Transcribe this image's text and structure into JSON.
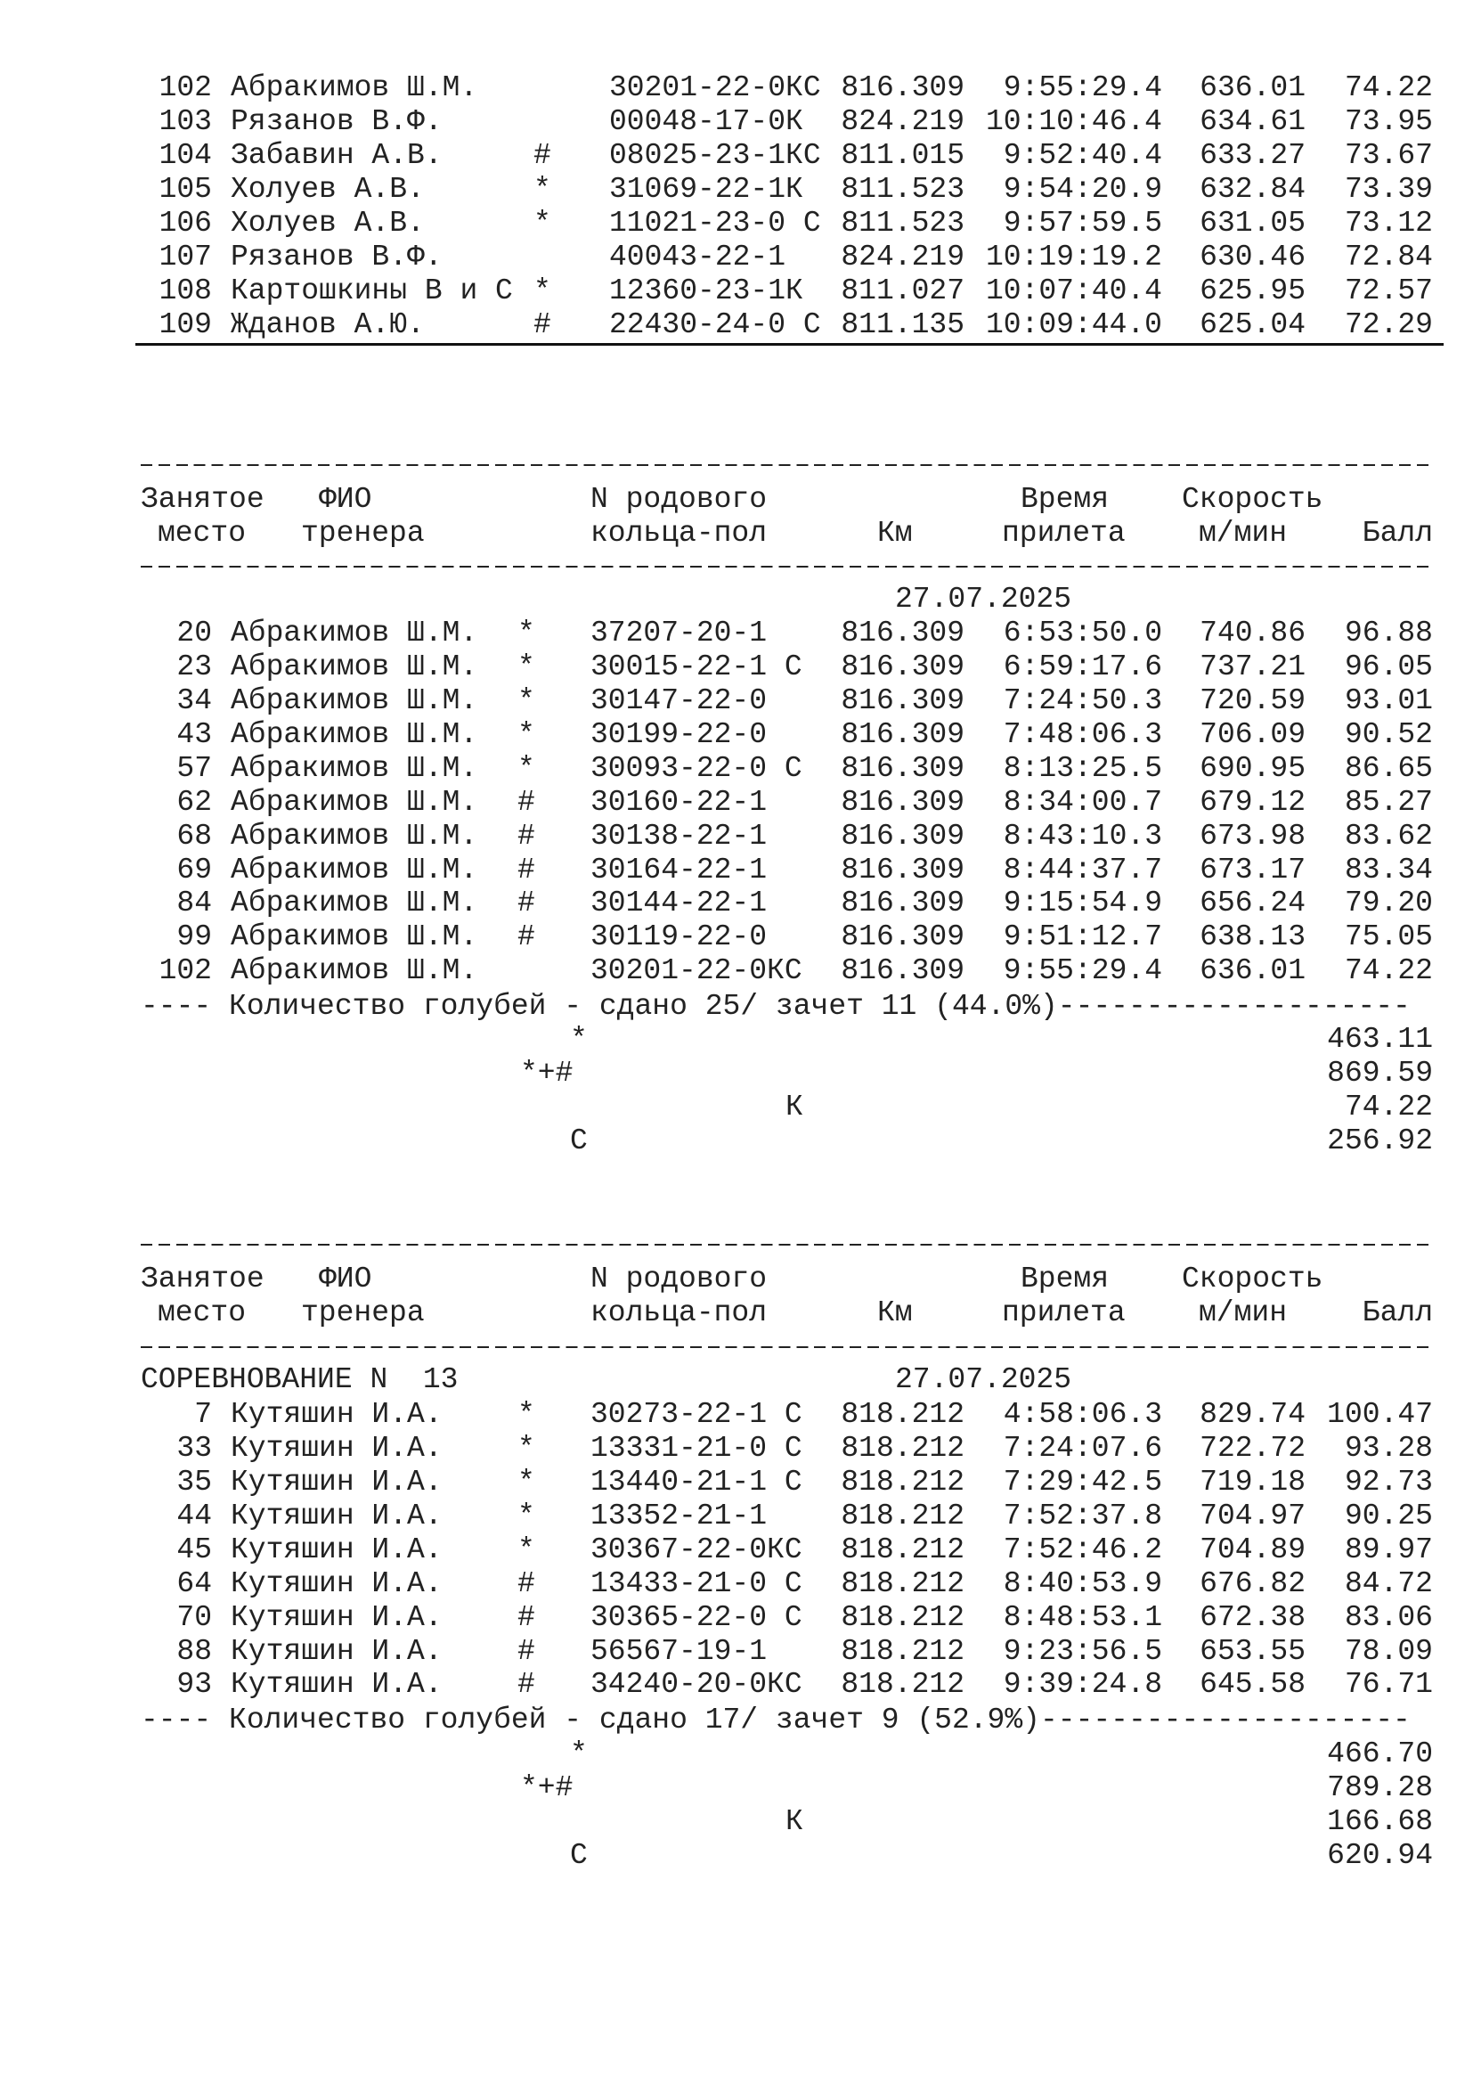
{
  "headers": {
    "place_1": "Занятое",
    "place_2": "место",
    "name_1": "ФИО",
    "name_2": "тренера",
    "ring_1": "N родового",
    "ring_2": "кольца-пол",
    "km": "Км",
    "time_1": "Время",
    "time_2": "прилета",
    "speed_1": "Скорость",
    "speed_2": "м/мин",
    "ball": "Балл"
  },
  "block1": {
    "rows": [
      [
        "102",
        "Абракимов Ш.М.",
        "",
        "30201-22-0КС",
        "816.309",
        "9:55:29.4",
        "636.01",
        "74.22"
      ],
      [
        "103",
        "Рязанов В.Ф.",
        "",
        "00048-17-0К",
        "824.219",
        "10:10:46.4",
        "634.61",
        "73.95"
      ],
      [
        "104",
        "Забавин А.В.",
        "#",
        "08025-23-1КС",
        "811.015",
        "9:52:40.4",
        "633.27",
        "73.67"
      ],
      [
        "105",
        "Холуев А.В.",
        "*",
        "31069-22-1К",
        "811.523",
        "9:54:20.9",
        "632.84",
        "73.39"
      ],
      [
        "106",
        "Холуев А.В.",
        "*",
        "11021-23-0 С",
        "811.523",
        "9:57:59.5",
        "631.05",
        "73.12"
      ],
      [
        "107",
        "Рязанов В.Ф.",
        "",
        "40043-22-1",
        "824.219",
        "10:19:19.2",
        "630.46",
        "72.84"
      ],
      [
        "108",
        "Картошкины В и С",
        "*",
        "12360-23-1К",
        "811.027",
        "10:07:40.4",
        "625.95",
        "72.57"
      ],
      [
        "109",
        "Жданов А.Ю.",
        "#",
        "22430-24-0 С",
        "811.135",
        "10:09:44.0",
        "625.04",
        "72.29"
      ]
    ]
  },
  "block2": {
    "competition": "",
    "date": "27.07.2025",
    "rows": [
      [
        "20",
        "Абракимов Ш.М.",
        "*",
        "37207-20-1",
        "816.309",
        "6:53:50.0",
        "740.86",
        "96.88"
      ],
      [
        "23",
        "Абракимов Ш.М.",
        "*",
        "30015-22-1 С",
        "816.309",
        "6:59:17.6",
        "737.21",
        "96.05"
      ],
      [
        "34",
        "Абракимов Ш.М.",
        "*",
        "30147-22-0",
        "816.309",
        "7:24:50.3",
        "720.59",
        "93.01"
      ],
      [
        "43",
        "Абракимов Ш.М.",
        "*",
        "30199-22-0",
        "816.309",
        "7:48:06.3",
        "706.09",
        "90.52"
      ],
      [
        "57",
        "Абракимов Ш.М.",
        "*",
        "30093-22-0 С",
        "816.309",
        "8:13:25.5",
        "690.95",
        "86.65"
      ],
      [
        "62",
        "Абракимов Ш.М.",
        "#",
        "30160-22-1",
        "816.309",
        "8:34:00.7",
        "679.12",
        "85.27"
      ],
      [
        "68",
        "Абракимов Ш.М.",
        "#",
        "30138-22-1",
        "816.309",
        "8:43:10.3",
        "673.98",
        "83.62"
      ],
      [
        "69",
        "Абракимов Ш.М.",
        "#",
        "30164-22-1",
        "816.309",
        "8:44:37.7",
        "673.17",
        "83.34"
      ],
      [
        "84",
        "Абракимов Ш.М.",
        "#",
        "30144-22-1",
        "816.309",
        "9:15:54.9",
        "656.24",
        "79.20"
      ],
      [
        "99",
        "Абракимов Ш.М.",
        "#",
        "30119-22-0",
        "816.309",
        "9:51:12.7",
        "638.13",
        "75.05"
      ],
      [
        "102",
        "Абракимов Ш.М.",
        "",
        "30201-22-0КС",
        "816.309",
        "9:55:29.4",
        "636.01",
        "74.22"
      ]
    ],
    "summary": "---- Количество голубей - сдано 25/ зачет 11 (44.0%)--------------------",
    "totals": [
      {
        "label": "*",
        "value": "463.11"
      },
      {
        "label": "*+#",
        "value": "869.59"
      },
      {
        "label": "К",
        "value": "74.22"
      },
      {
        "label": "С",
        "value": "256.92"
      }
    ]
  },
  "block3": {
    "competition": "СОРЕВНОВАНИЕ N  13",
    "date": "27.07.2025",
    "rows": [
      [
        "7",
        "Кутяшин И.А.",
        "*",
        "30273-22-1 С",
        "818.212",
        "4:58:06.3",
        "829.74",
        "100.47"
      ],
      [
        "33",
        "Кутяшин И.А.",
        "*",
        "13331-21-0 С",
        "818.212",
        "7:24:07.6",
        "722.72",
        "93.28"
      ],
      [
        "35",
        "Кутяшин И.А.",
        "*",
        "13440-21-1 С",
        "818.212",
        "7:29:42.5",
        "719.18",
        "92.73"
      ],
      [
        "44",
        "Кутяшин И.А.",
        "*",
        "13352-21-1",
        "818.212",
        "7:52:37.8",
        "704.97",
        "90.25"
      ],
      [
        "45",
        "Кутяшин И.А.",
        "*",
        "30367-22-0КС",
        "818.212",
        "7:52:46.2",
        "704.89",
        "89.97"
      ],
      [
        "64",
        "Кутяшин И.А.",
        "#",
        "13433-21-0 С",
        "818.212",
        "8:40:53.9",
        "676.82",
        "84.72"
      ],
      [
        "70",
        "Кутяшин И.А.",
        "#",
        "30365-22-0 С",
        "818.212",
        "8:48:53.1",
        "672.38",
        "83.06"
      ],
      [
        "88",
        "Кутяшин И.А.",
        "#",
        "56567-19-1",
        "818.212",
        "9:23:56.5",
        "653.55",
        "78.09"
      ],
      [
        "93",
        "Кутяшин И.А.",
        "#",
        "34240-20-0КС",
        "818.212",
        "9:39:24.8",
        "645.58",
        "76.71"
      ]
    ],
    "summary": "---- Количество голубей - сдано 17/ зачет 9 (52.9%)---------------------",
    "totals": [
      {
        "label": "*",
        "value": "466.70"
      },
      {
        "label": "*+#",
        "value": "789.28"
      },
      {
        "label": "К",
        "value": "166.68"
      },
      {
        "label": "С",
        "value": "620.94"
      }
    ]
  }
}
